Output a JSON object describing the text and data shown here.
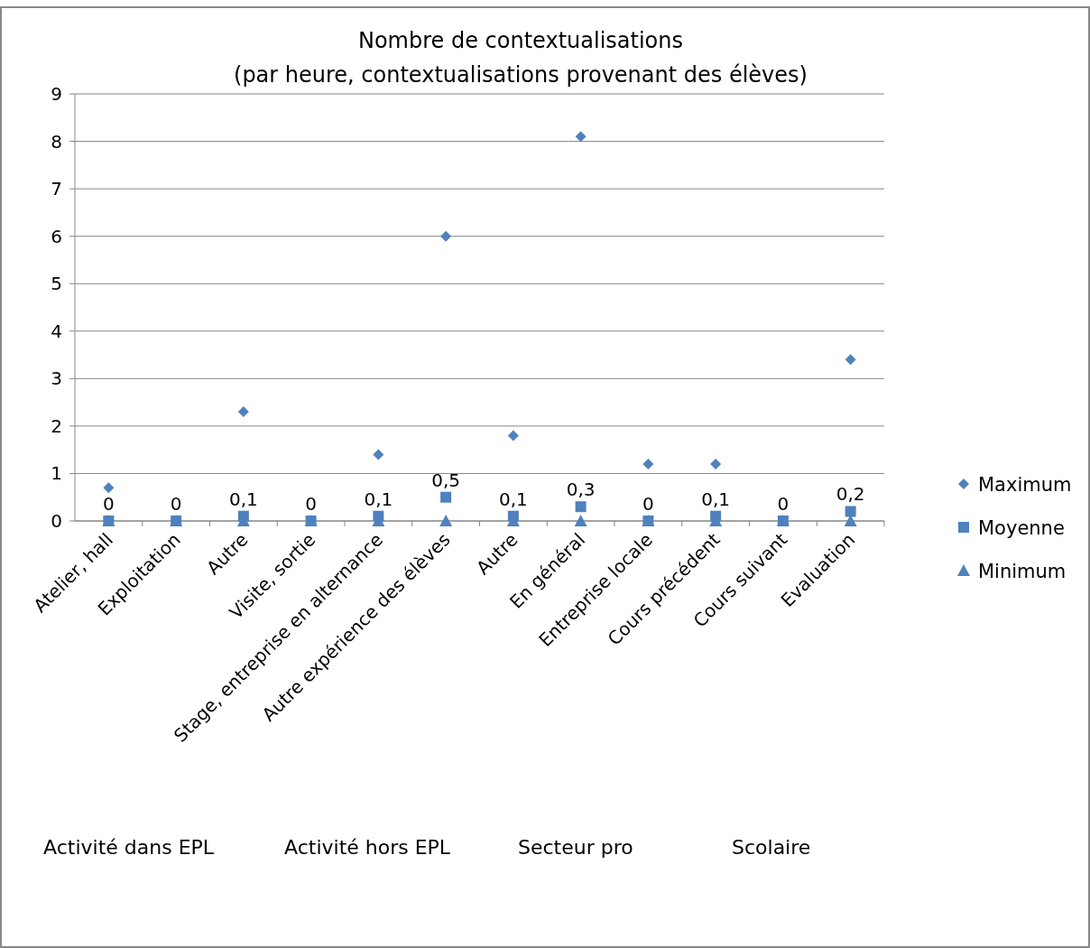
{
  "chart_data": {
    "type": "scatter",
    "title": "Nombre de contextualisations",
    "subtitle": "(par heure, contextualisations provenant des élèves)",
    "categories": [
      "Atelier, hall",
      "Exploitation",
      "Autre",
      "Visite, sortie",
      "Stage, entreprise en alternance",
      "Autre expérience des élèves",
      "Autre",
      "En général",
      "Entreprise locale",
      "Cours précédent",
      "Cours suivant",
      "Evaluation"
    ],
    "series": [
      {
        "name": "Maximum",
        "color": "#4f81bd",
        "marker": "diamond",
        "values": [
          0.7,
          null,
          2.3,
          null,
          1.4,
          6,
          1.8,
          8.1,
          1.2,
          1.2,
          null,
          3.4
        ]
      },
      {
        "name": "Moyenne",
        "color": "#4f81bd",
        "marker": "square",
        "values": [
          0,
          0,
          0.1,
          0,
          0.1,
          0.5,
          0.1,
          0.3,
          0,
          0.1,
          0,
          0.2
        ],
        "value_labels": [
          "0",
          "0",
          "0,1",
          "0",
          "0,1",
          "0,5",
          "0,1",
          "0,3",
          "0",
          "0,1",
          "0",
          "0,2"
        ]
      },
      {
        "name": "Minimum",
        "color": "#4f81bd",
        "marker": "triangle",
        "values": [
          0,
          0,
          0,
          0,
          0,
          0,
          0,
          0,
          0,
          0,
          0,
          0
        ]
      }
    ],
    "ylim": [
      0,
      9
    ],
    "yticks": [
      0,
      1,
      2,
      3,
      4,
      5,
      6,
      7,
      8,
      9
    ],
    "grid": "y",
    "legend": "right",
    "annotations": [
      "Activité dans EPL",
      "Activité hors EPL",
      "Secteur pro",
      "Scolaire"
    ]
  }
}
